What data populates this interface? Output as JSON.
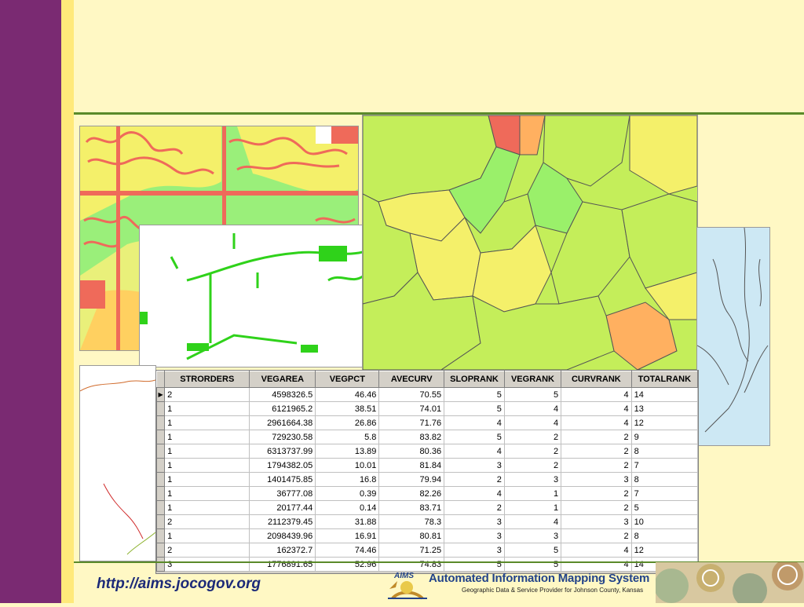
{
  "footer": {
    "url": "http://aims.jocogov.org",
    "logo_badge": "AIMS",
    "logo_title": "Automated Information Mapping System",
    "logo_subtitle": "Geographic Data & Service Provider for Johnson County, Kansas"
  },
  "colors": {
    "left_bar": "#7a2a72",
    "accent_stripe": "#ffe97a",
    "background": "#fff8c4",
    "rule": "#5a8a2a"
  },
  "table": {
    "columns": [
      "STRORDERS",
      "VEGAREA",
      "VEGPCT",
      "AVECURV",
      "SLOPRANK",
      "VEGRANK",
      "CURVRANK",
      "TOTALRANK"
    ],
    "selected_row": 0,
    "rows": [
      [
        "2",
        "4598326.5",
        "46.46",
        "70.55",
        "5",
        "5",
        "4",
        "14"
      ],
      [
        "1",
        "6121965.2",
        "38.51",
        "74.01",
        "5",
        "4",
        "4",
        "13"
      ],
      [
        "1",
        "2961664.38",
        "26.86",
        "71.76",
        "4",
        "4",
        "4",
        "12"
      ],
      [
        "1",
        "729230.58",
        "5.8",
        "83.82",
        "5",
        "2",
        "2",
        "9"
      ],
      [
        "1",
        "6313737.99",
        "13.89",
        "80.36",
        "4",
        "2",
        "2",
        "8"
      ],
      [
        "1",
        "1794382.05",
        "10.01",
        "81.84",
        "3",
        "2",
        "2",
        "7"
      ],
      [
        "1",
        "1401475.85",
        "16.8",
        "79.94",
        "2",
        "3",
        "3",
        "8"
      ],
      [
        "1",
        "36777.08",
        "0.39",
        "82.26",
        "4",
        "1",
        "2",
        "7"
      ],
      [
        "1",
        "20177.44",
        "0.14",
        "83.71",
        "2",
        "1",
        "2",
        "5"
      ],
      [
        "2",
        "2112379.45",
        "31.88",
        "78.3",
        "3",
        "4",
        "3",
        "10"
      ],
      [
        "1",
        "2098439.96",
        "16.91",
        "80.81",
        "3",
        "3",
        "2",
        "8"
      ],
      [
        "2",
        "162372.7",
        "74.46",
        "71.25",
        "3",
        "5",
        "4",
        "12"
      ],
      [
        "3",
        "1776891.65",
        "52.96",
        "74.83",
        "5",
        "5",
        "4",
        "14"
      ]
    ]
  }
}
